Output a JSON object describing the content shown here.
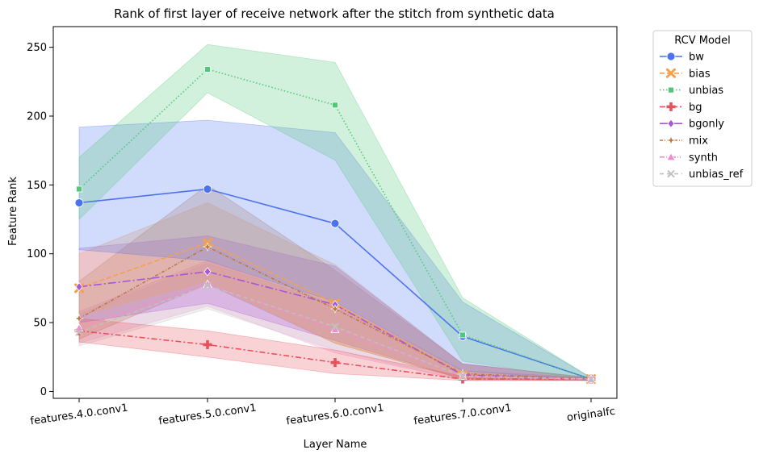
{
  "chart_data": {
    "type": "line",
    "title": "Rank of first layer of receive network after the stitch from synthetic data",
    "xlabel": "Layer Name",
    "ylabel": "Feature Rank",
    "categories": [
      "features.4.0.conv1",
      "features.5.0.conv1",
      "features.6.0.conv1",
      "features.7.0.conv1",
      "originalfc"
    ],
    "ylim": [
      -5,
      265
    ],
    "yticks": [
      0,
      50,
      100,
      150,
      200,
      250
    ],
    "legend": {
      "title": "RCV Model",
      "placement": "outside-top-right"
    },
    "series": [
      {
        "name": "bw",
        "color": "#4c72f0",
        "marker": "circle",
        "dash": "",
        "values": [
          137,
          147,
          122,
          40,
          9
        ],
        "lower": [
          103,
          95,
          65,
          15,
          8
        ],
        "upper": [
          192,
          197,
          188,
          65,
          10
        ]
      },
      {
        "name": "bias",
        "color": "#f5a04c",
        "marker": "x",
        "dash": "6,3",
        "values": [
          75,
          108,
          64,
          12,
          9
        ],
        "lower": [
          55,
          80,
          35,
          9,
          8
        ],
        "upper": [
          100,
          137,
          92,
          20,
          10
        ]
      },
      {
        "name": "unbias",
        "color": "#50c878",
        "marker": "square",
        "dash": "1.5,2.5",
        "values": [
          147,
          234,
          208,
          41,
          9
        ],
        "lower": [
          125,
          217,
          168,
          22,
          8
        ],
        "upper": [
          170,
          252,
          239,
          68,
          10
        ]
      },
      {
        "name": "bg",
        "color": "#e8505b",
        "marker": "plus",
        "dash": "7,3,2,3",
        "values": [
          44,
          34,
          21,
          9,
          9
        ],
        "lower": [
          36,
          25,
          13,
          8,
          8
        ],
        "upper": [
          53,
          44,
          30,
          11,
          10
        ]
      },
      {
        "name": "bgonly",
        "color": "#a855d8",
        "marker": "diamond",
        "dash": "10,3,2,3",
        "values": [
          76,
          87,
          63,
          12,
          9
        ],
        "lower": [
          50,
          64,
          37,
          9,
          8
        ],
        "upper": [
          104,
          113,
          91,
          20,
          10
        ]
      },
      {
        "name": "mix",
        "color": "#b87a4b",
        "marker": "star",
        "dash": "4,2,1,2",
        "values": [
          53,
          105,
          60,
          13,
          9
        ],
        "lower": [
          38,
          78,
          35,
          9,
          8
        ],
        "upper": [
          80,
          150,
          88,
          20,
          10
        ]
      },
      {
        "name": "synth",
        "color": "#f08fd0",
        "marker": "triangle",
        "dash": "6,2,1,2,1,2",
        "values": [
          46,
          78,
          45,
          11,
          9
        ],
        "lower": [
          35,
          62,
          28,
          8,
          8
        ],
        "upper": [
          58,
          95,
          63,
          15,
          10
        ]
      },
      {
        "name": "unbias_ref",
        "color": "#c0c0c0",
        "marker": "xsmall",
        "dash": "5,4",
        "values": [
          43,
          77,
          47,
          11,
          9
        ],
        "lower": [
          33,
          60,
          30,
          8,
          8
        ],
        "upper": [
          56,
          93,
          64,
          15,
          10
        ]
      }
    ]
  }
}
